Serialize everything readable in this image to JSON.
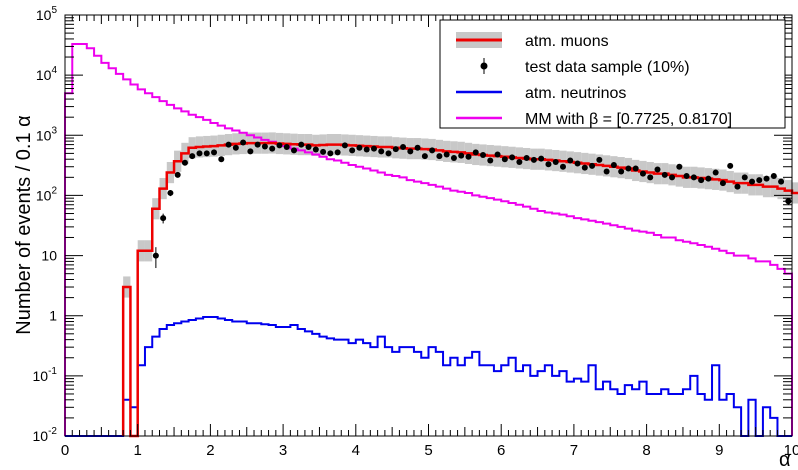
{
  "chart_data": {
    "type": "line",
    "title": "",
    "xlabel": "α",
    "ylabel": "Number of events / 0.1 α",
    "xlim": [
      0,
      10
    ],
    "ylim": [
      0.01,
      100000
    ],
    "log_y": true,
    "grid": false,
    "legend_position": "top-right",
    "x_ticks": [
      "0",
      "1",
      "2",
      "3",
      "4",
      "5",
      "6",
      "7",
      "8",
      "9",
      "10"
    ],
    "y_ticks": [
      {
        "value": 0.01,
        "label": "10-2",
        "base": "10",
        "exp": "-2"
      },
      {
        "value": 0.1,
        "label": "10-1",
        "base": "10",
        "exp": "-1"
      },
      {
        "value": 1,
        "label": "1",
        "base": "1",
        "exp": ""
      },
      {
        "value": 10,
        "label": "10",
        "base": "10",
        "exp": ""
      },
      {
        "value": 100,
        "label": "102",
        "base": "10",
        "exp": "2"
      },
      {
        "value": 1000,
        "label": "103",
        "base": "10",
        "exp": "3"
      },
      {
        "value": 10000,
        "label": "104",
        "base": "10",
        "exp": "4"
      },
      {
        "value": 100000,
        "label": "105",
        "base": "10",
        "exp": "5"
      }
    ],
    "legend": [
      {
        "label": "atm. muons",
        "style": "band",
        "color": "#ee0000",
        "band_color": "#c8c8c8"
      },
      {
        "label": "test data sample (10%)",
        "style": "marker",
        "color": "#000000"
      },
      {
        "label": "atm. neutrinos",
        "style": "line",
        "color": "#0000ee"
      },
      {
        "label": "MM with β = [0.7725, 0.8170]",
        "style": "line",
        "color": "#ee00ee"
      }
    ],
    "bin_width": 0.1,
    "series": [
      {
        "name": "atm. muons",
        "color": "#ee0000",
        "band_color": "#c8c8c8",
        "x_start": 0.8,
        "values": [
          3,
          0.01,
          12,
          12,
          60,
          130,
          240,
          370,
          500,
          620,
          640,
          650,
          660,
          680,
          700,
          720,
          730,
          740,
          740,
          740,
          745,
          730,
          720,
          710,
          700,
          700,
          680,
          690,
          700,
          700,
          690,
          680,
          670,
          660,
          650,
          640,
          640,
          620,
          610,
          600,
          600,
          590,
          580,
          560,
          540,
          530,
          520,
          500,
          480,
          470,
          460,
          450,
          440,
          430,
          420,
          410,
          400,
          400,
          390,
          380,
          370,
          360,
          350,
          340,
          330,
          320,
          310,
          300,
          290,
          280,
          260,
          250,
          240,
          230,
          230,
          220,
          210,
          200,
          200,
          195,
          190,
          185,
          180,
          170,
          160,
          160,
          150,
          150,
          140,
          140,
          130,
          120,
          110
        ]
      },
      {
        "name": "test data sample (10%)",
        "color": "#000000",
        "x": [
          1.25,
          1.35,
          1.45,
          1.55,
          1.65,
          1.75,
          1.85,
          1.95,
          2.05,
          2.15,
          2.25,
          2.35,
          2.45,
          2.55,
          2.65,
          2.75,
          2.85,
          2.95,
          3.05,
          3.15,
          3.25,
          3.35,
          3.45,
          3.55,
          3.65,
          3.75,
          3.85,
          3.95,
          4.05,
          4.15,
          4.25,
          4.35,
          4.45,
          4.55,
          4.65,
          4.75,
          4.85,
          4.95,
          5.05,
          5.15,
          5.25,
          5.35,
          5.45,
          5.55,
          5.65,
          5.75,
          5.85,
          5.95,
          6.05,
          6.15,
          6.25,
          6.35,
          6.45,
          6.55,
          6.65,
          6.75,
          6.85,
          6.95,
          7.05,
          7.15,
          7.25,
          7.35,
          7.45,
          7.55,
          7.65,
          7.75,
          7.85,
          7.95,
          8.05,
          8.15,
          8.25,
          8.35,
          8.45,
          8.55,
          8.65,
          8.75,
          8.85,
          8.95,
          9.05,
          9.15,
          9.25,
          9.35,
          9.45,
          9.55,
          9.65,
          9.75,
          9.85,
          9.95
        ],
        "values": [
          10,
          42,
          110,
          220,
          350,
          450,
          500,
          500,
          520,
          400,
          700,
          620,
          760,
          540,
          700,
          650,
          600,
          680,
          640,
          560,
          700,
          640,
          580,
          530,
          500,
          520,
          680,
          560,
          620,
          580,
          600,
          540,
          500,
          590,
          640,
          540,
          620,
          450,
          560,
          450,
          480,
          420,
          460,
          440,
          520,
          470,
          380,
          480,
          400,
          430,
          360,
          420,
          390,
          410,
          330,
          360,
          300,
          380,
          340,
          290,
          310,
          390,
          250,
          320,
          250,
          280,
          280,
          230,
          200,
          270,
          220,
          200,
          300,
          210,
          200,
          180,
          190,
          240,
          160,
          310,
          140,
          200,
          170,
          180,
          190,
          210,
          170,
          80
        ]
      },
      {
        "name": "atm. neutrinos",
        "color": "#0000ee",
        "x_start": 0,
        "values": [
          0.01,
          0.01,
          0.01,
          0.01,
          0.01,
          0.01,
          0.01,
          0.01,
          0.04,
          0.03,
          0.15,
          0.3,
          0.45,
          0.6,
          0.7,
          0.75,
          0.8,
          0.85,
          0.9,
          0.95,
          0.95,
          0.9,
          0.85,
          0.8,
          0.8,
          0.75,
          0.75,
          0.72,
          0.7,
          0.65,
          0.65,
          0.7,
          0.6,
          0.55,
          0.5,
          0.45,
          0.42,
          0.4,
          0.4,
          0.35,
          0.4,
          0.35,
          0.3,
          0.45,
          0.3,
          0.25,
          0.3,
          0.3,
          0.25,
          0.2,
          0.3,
          0.25,
          0.15,
          0.2,
          0.15,
          0.2,
          0.25,
          0.15,
          0.15,
          0.12,
          0.15,
          0.2,
          0.12,
          0.15,
          0.1,
          0.12,
          0.15,
          0.1,
          0.12,
          0.08,
          0.09,
          0.08,
          0.15,
          0.06,
          0.08,
          0.06,
          0.05,
          0.07,
          0.06,
          0.08,
          0.05,
          0.05,
          0.06,
          0.05,
          0.05,
          0.06,
          0.1,
          0.05,
          0.04,
          0.15,
          0.04,
          0.05,
          0.03,
          0.01,
          0.04,
          0.01,
          0.03,
          0.02,
          0.01,
          0.01
        ]
      },
      {
        "name": "MM with β = [0.7725, 0.8170]",
        "color": "#ee00ee",
        "x_start": 0,
        "values": [
          5000,
          33000,
          33000,
          28000,
          21000,
          16000,
          13000,
          10500,
          8500,
          7000,
          5800,
          5000,
          4300,
          3700,
          3200,
          2800,
          2500,
          2200,
          2000,
          1800,
          1600,
          1450,
          1300,
          1200,
          1100,
          1000,
          920,
          840,
          780,
          720,
          660,
          600,
          560,
          520,
          480,
          440,
          400,
          380,
          350,
          320,
          300,
          280,
          260,
          240,
          220,
          210,
          200,
          180,
          170,
          160,
          150,
          140,
          130,
          120,
          115,
          110,
          100,
          95,
          90,
          85,
          80,
          75,
          70,
          65,
          60,
          55,
          52,
          50,
          48,
          45,
          42,
          40,
          38,
          36,
          34,
          32,
          30,
          28,
          26,
          25,
          24,
          22,
          20,
          20,
          18,
          17,
          16,
          15,
          14,
          13,
          12,
          11,
          10,
          10,
          9,
          8,
          8,
          7,
          6,
          5
        ]
      }
    ]
  }
}
